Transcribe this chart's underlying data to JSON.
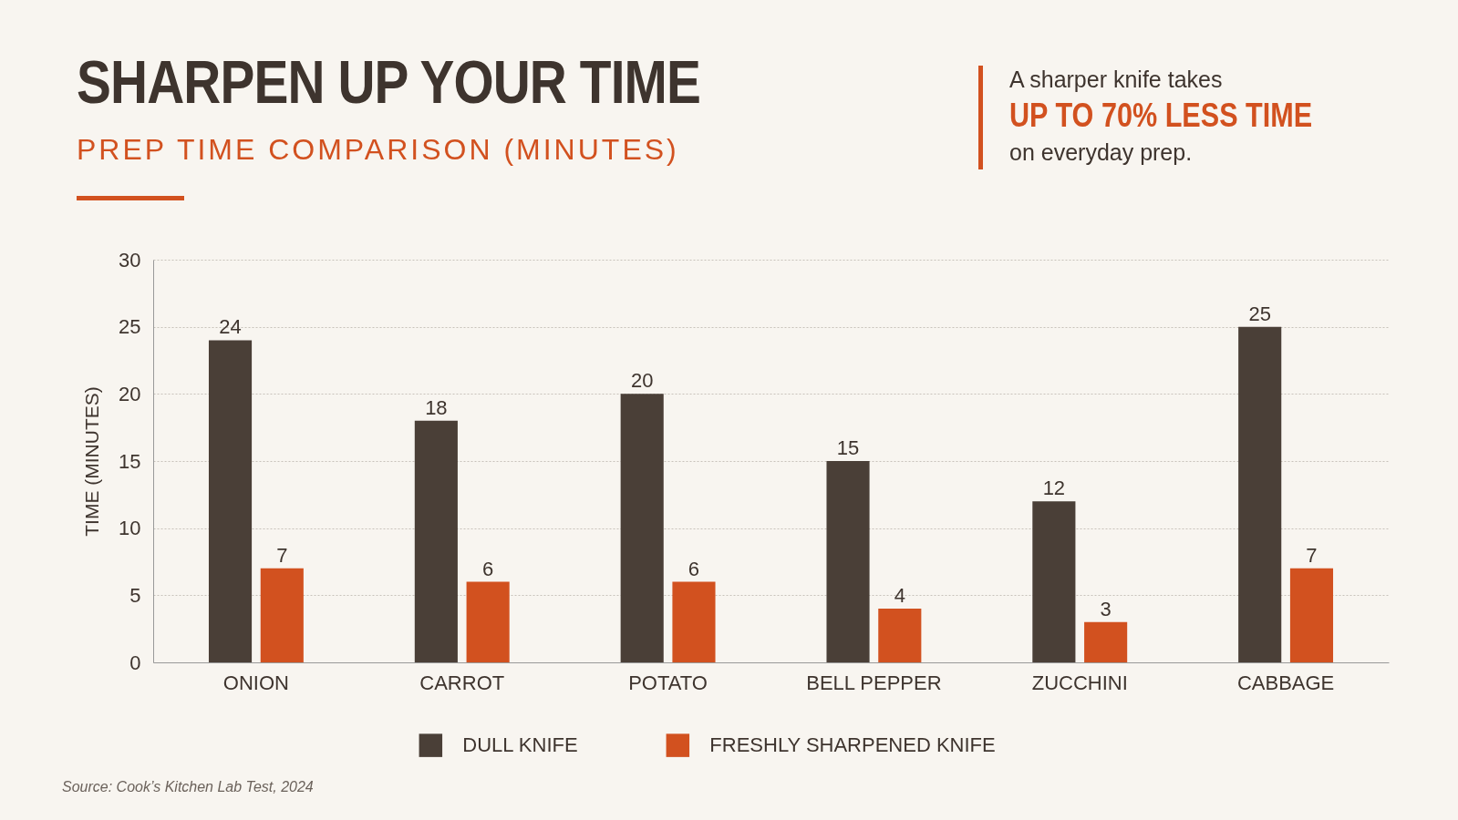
{
  "chart_data": {
    "type": "bar",
    "title": "SHARPEN UP YOUR TIME",
    "subtitle": "PREP TIME COMPARISON (MINUTES)",
    "ylabel": "TIME (MINUTES)",
    "categories": [
      "ONION",
      "CARROT",
      "POTATO",
      "BELL PEPPER",
      "ZUCCHINI",
      "CABBAGE"
    ],
    "series": [
      {
        "name": "DULL KNIFE",
        "color": "#4a3f37",
        "values": [
          24,
          18,
          20,
          15,
          12,
          25
        ]
      },
      {
        "name": "FRESHLY SHARPENED KNIFE",
        "color": "#d2511f",
        "values": [
          7,
          6,
          6,
          4,
          3,
          7
        ]
      }
    ],
    "ylim": [
      0,
      30
    ],
    "yticks": [
      0,
      5,
      10,
      15,
      20,
      25,
      30
    ],
    "grid": "y",
    "legend": "bottom",
    "data_labels": true,
    "annotations": [
      "A sharper knife takes",
      "UP TO 70% LESS TIME",
      "on everyday prep.",
      "Source: Cook’s Kitchen Lab Test, 2024"
    ]
  }
}
